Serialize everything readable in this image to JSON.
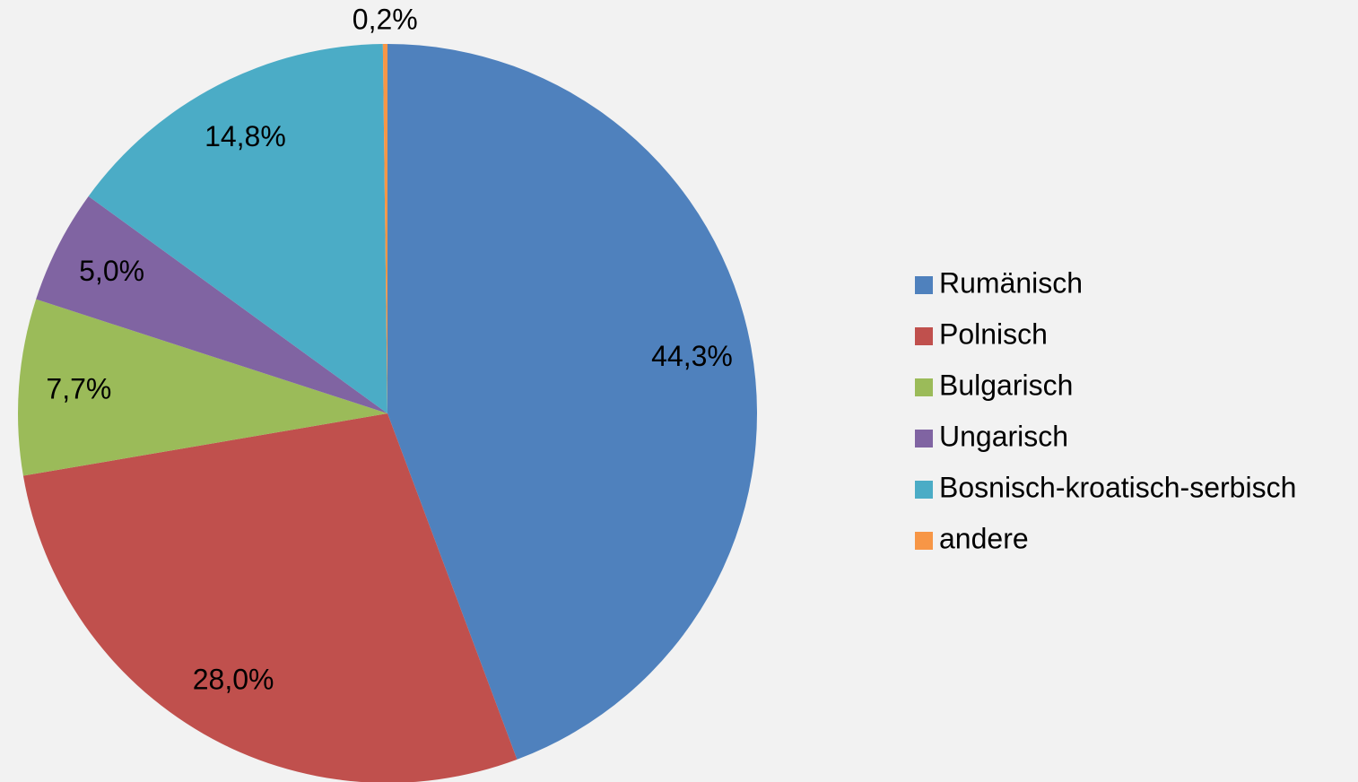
{
  "chart_data": {
    "type": "pie",
    "categories": [
      "Rumänisch",
      "Polnisch",
      "Bulgarisch",
      "Ungarisch",
      "Bosnisch-kroatisch-serbisch",
      "andere"
    ],
    "values": [
      44.3,
      28.0,
      7.7,
      5.0,
      14.8,
      0.2
    ],
    "value_labels": [
      "44,3%",
      "28,0%",
      "7,7%",
      "5,0%",
      "14,8%",
      "0,2%"
    ],
    "colors": [
      "#4f81bd",
      "#c0504d",
      "#9bbb59",
      "#8064a2",
      "#4bacc6",
      "#f79646"
    ],
    "legend": "right"
  }
}
